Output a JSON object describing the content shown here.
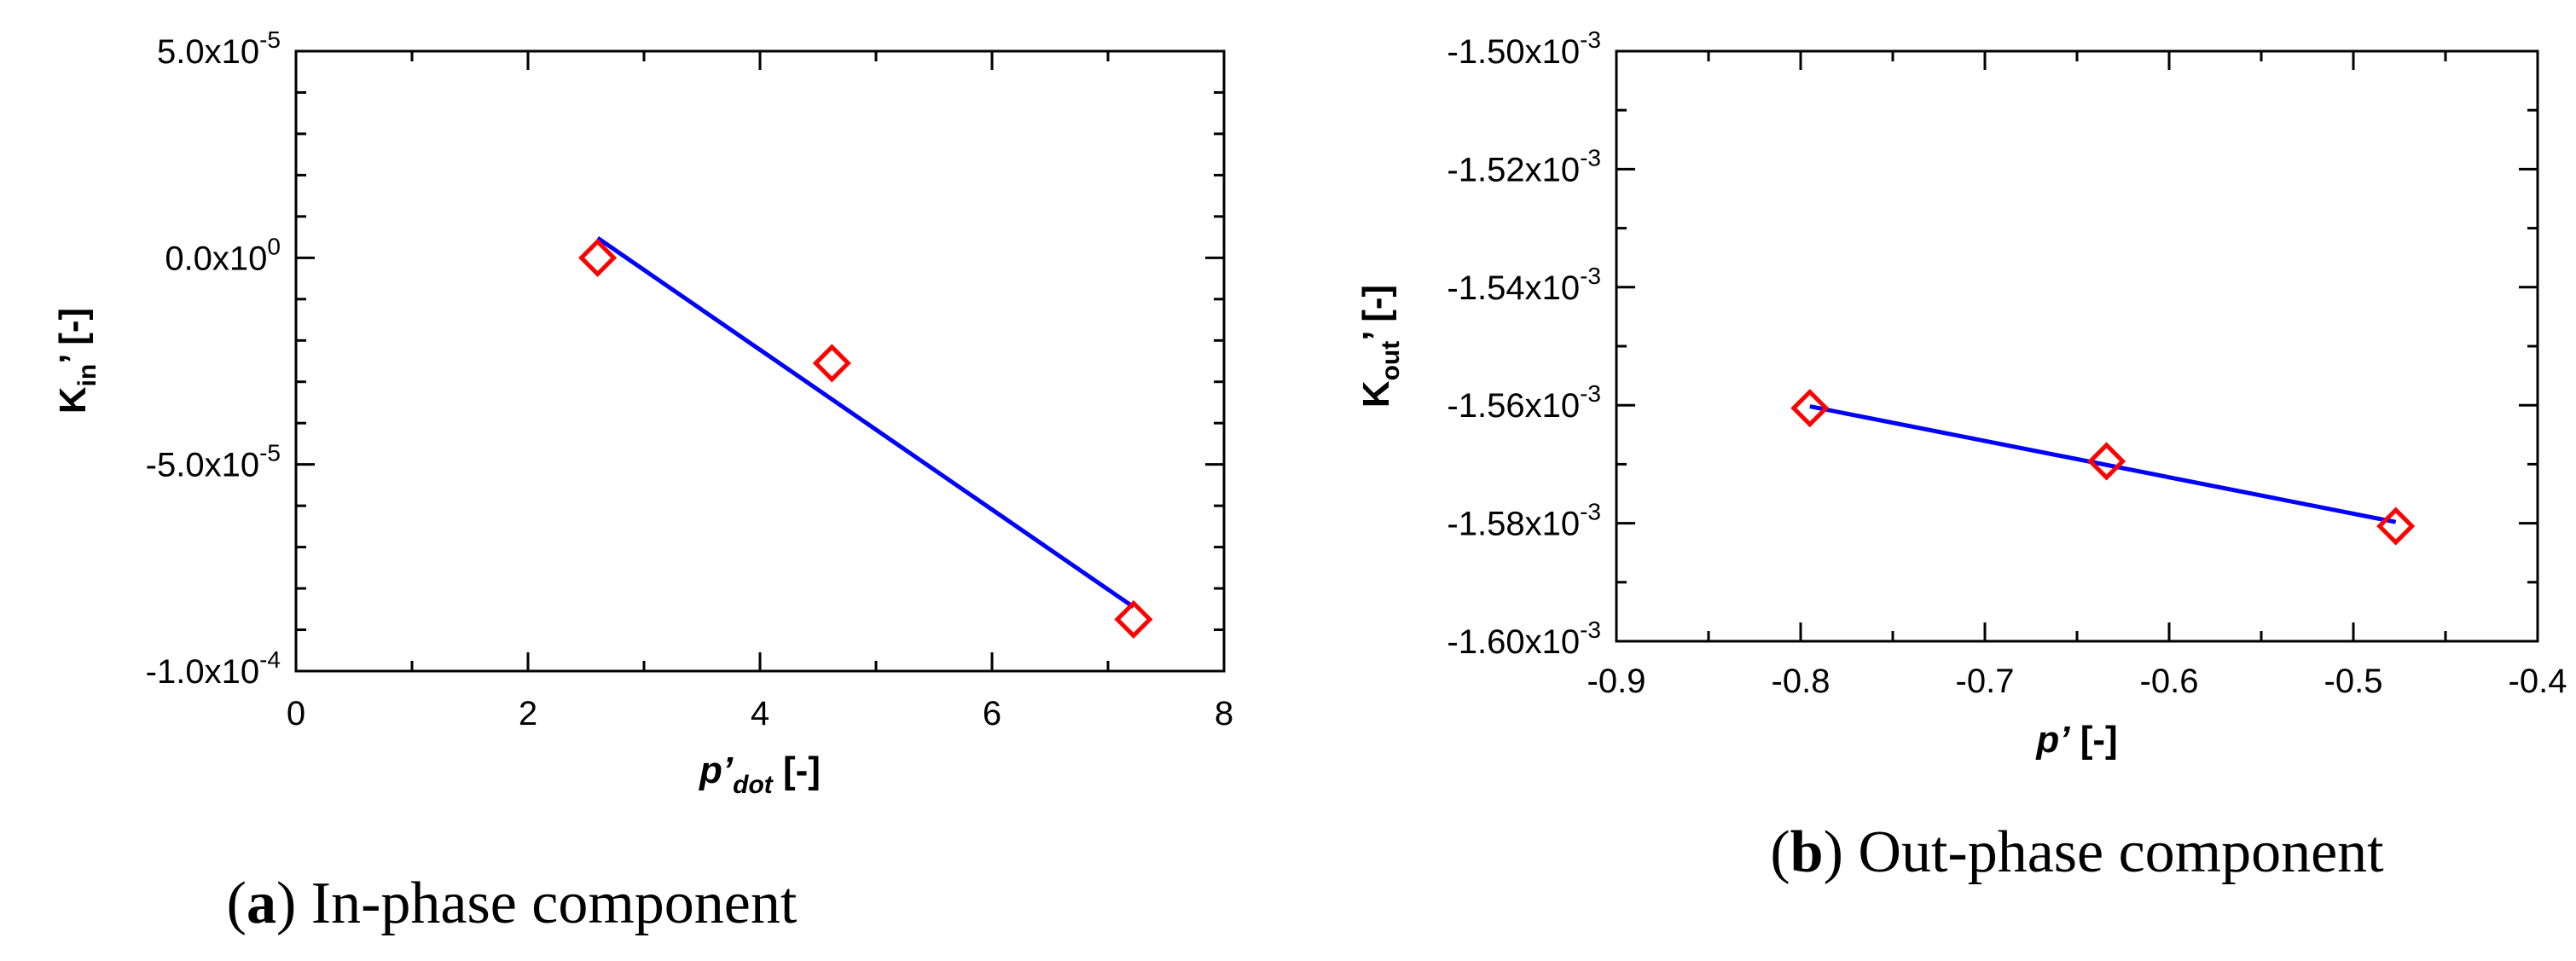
{
  "colors": {
    "marker": "#ff0000",
    "fit_line": "#0000ff",
    "axes": "#000000"
  },
  "chart_data": [
    {
      "type": "scatter",
      "xlabel": {
        "main": "p",
        "prime": "’",
        "sub": "dot",
        "unit": " [-]"
      },
      "ylabel": {
        "main": "K",
        "sub": "in",
        "prime": "’",
        "unit": " [-]"
      },
      "xlim": [
        0,
        8
      ],
      "ylim": [
        -0.0001,
        5e-05
      ],
      "x_ticks": [
        0,
        2,
        4,
        6,
        8
      ],
      "x_tick_labels": [
        "0",
        "2",
        "4",
        "6",
        "8"
      ],
      "y_ticks": [
        5e-05,
        0.0,
        -5e-05,
        -0.0001
      ],
      "y_tick_labels": [
        {
          "mantissa": "5.0x10",
          "exponent": "-5"
        },
        {
          "mantissa": "0.0x10",
          "exponent": "0"
        },
        {
          "mantissa": "-5.0x10",
          "exponent": "-5"
        },
        {
          "mantissa": "-1.0x10",
          "exponent": "-4"
        }
      ],
      "points": {
        "x": [
          2.6,
          4.62,
          7.22
        ],
        "y": [
          0.0,
          -2.55e-05,
          -8.75e-05
        ]
      },
      "fit_line": {
        "x": [
          2.6,
          7.22
        ],
        "y": [
          4.8e-06,
          -8.45e-05
        ]
      },
      "caption": {
        "letter": "a",
        "text": " In-phase component"
      }
    },
    {
      "type": "scatter",
      "xlabel": {
        "main": "p",
        "prime": "’",
        "sub": "",
        "unit": " [-]"
      },
      "ylabel": {
        "main": "K",
        "sub": "out",
        "prime": "’",
        "unit": " [-]"
      },
      "xlim": [
        -0.9,
        -0.4
      ],
      "ylim": [
        -0.0016,
        -0.0015
      ],
      "x_ticks": [
        -0.9,
        -0.8,
        -0.7,
        -0.6,
        -0.5,
        -0.4
      ],
      "x_tick_labels": [
        "-0.9",
        "-0.8",
        "-0.7",
        "-0.6",
        "-0.5",
        "-0.4"
      ],
      "y_ticks": [
        -0.0015,
        -0.00152,
        -0.00154,
        -0.00156,
        -0.00158,
        -0.0016
      ],
      "y_tick_labels": [
        {
          "mantissa": "-1.50x10",
          "exponent": "-3"
        },
        {
          "mantissa": "-1.52x10",
          "exponent": "-3"
        },
        {
          "mantissa": "-1.54x10",
          "exponent": "-3"
        },
        {
          "mantissa": "-1.56x10",
          "exponent": "-3"
        },
        {
          "mantissa": "-1.58x10",
          "exponent": "-3"
        },
        {
          "mantissa": "-1.60x10",
          "exponent": "-3"
        }
      ],
      "points": {
        "x": [
          -0.795,
          -0.634,
          -0.477
        ],
        "y": [
          -0.0015605,
          -0.0015695,
          -0.0015805
        ]
      },
      "fit_line": {
        "x": [
          -0.795,
          -0.477
        ],
        "y": [
          -0.0015602,
          -0.0015798
        ]
      },
      "caption": {
        "letter": "b",
        "text": " Out-phase component"
      }
    }
  ]
}
